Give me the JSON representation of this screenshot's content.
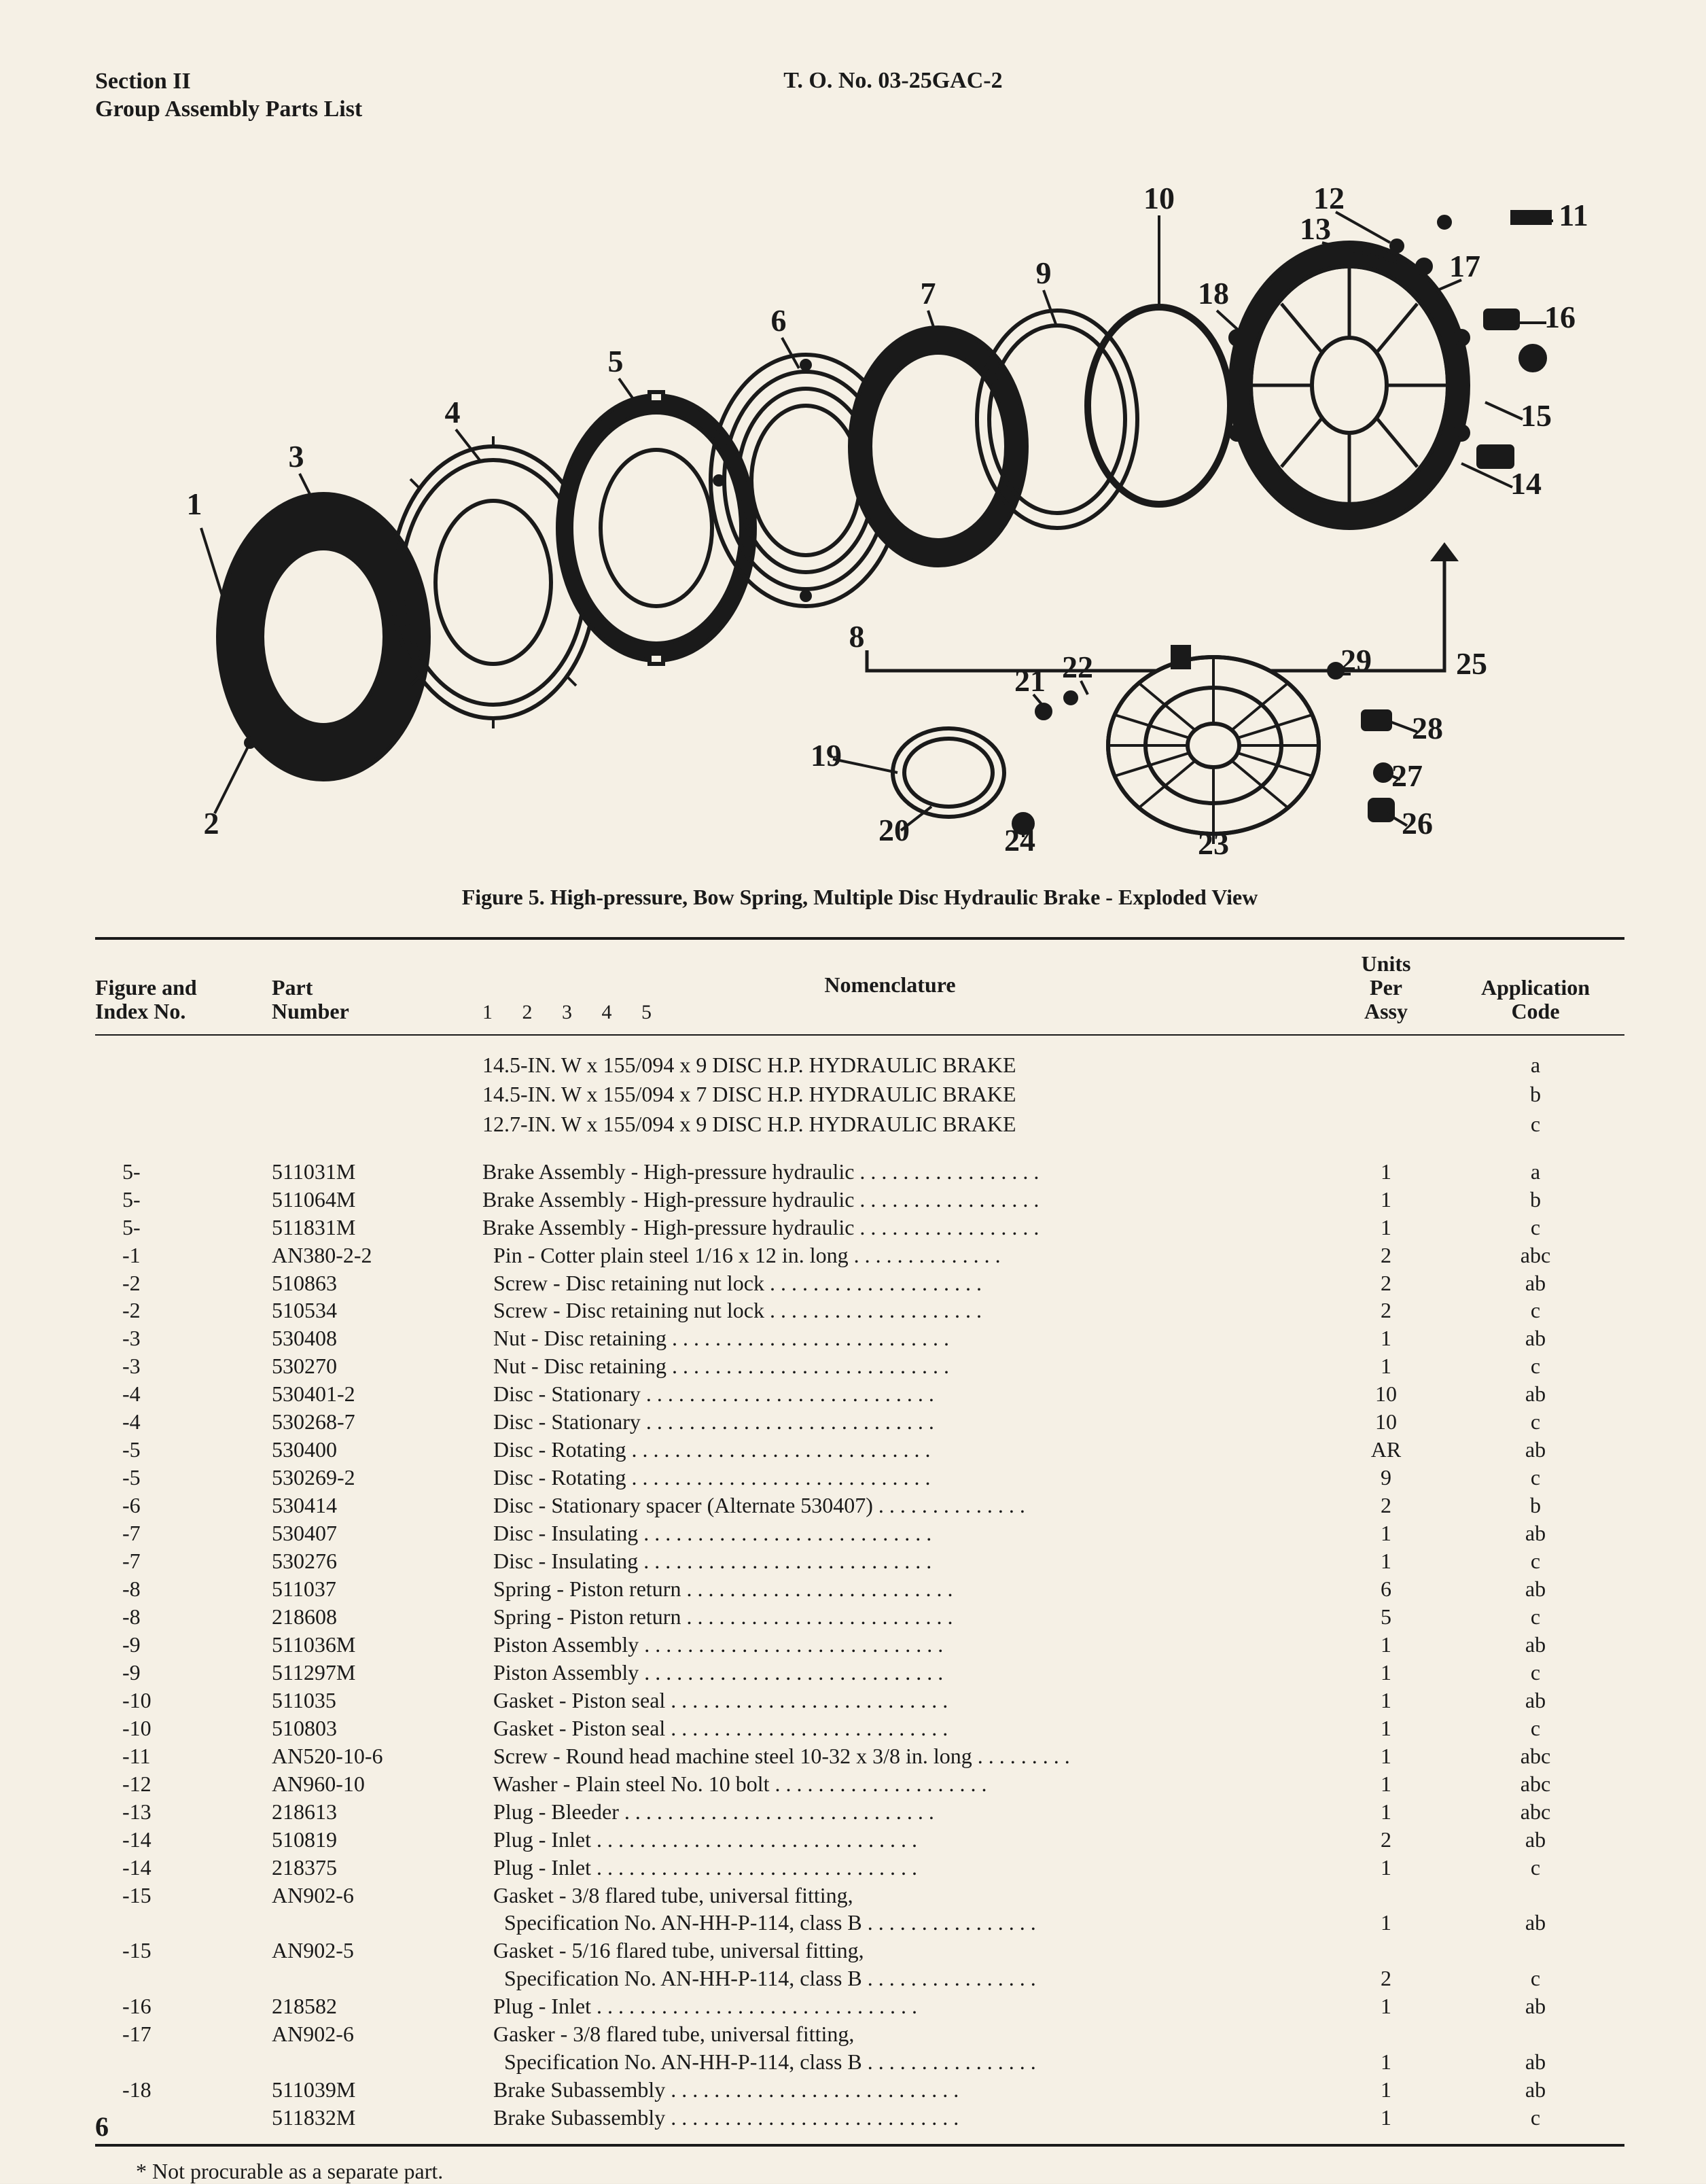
{
  "header": {
    "section": "Section II",
    "subtitle": "Group Assembly Parts List",
    "to_number": "T. O. No. 03-25GAC-2"
  },
  "figure_caption": "Figure 5.  High-pressure, Bow Spring, Multiple Disc Hydraulic Brake - Exploded View",
  "diagram": {
    "type": "exploded-view",
    "callouts": [
      "1",
      "2",
      "3",
      "4",
      "5",
      "6",
      "7",
      "8",
      "9",
      "10",
      "11",
      "12",
      "13",
      "14",
      "15",
      "16",
      "17",
      "18",
      "19",
      "20",
      "21",
      "22",
      "23",
      "24",
      "25",
      "26",
      "27",
      "28",
      "29"
    ],
    "background": "#f5f0e5",
    "stroke": "#1a1a1a",
    "label_fontsize": 40
  },
  "table": {
    "headers": {
      "fig": "Figure and\nIndex No.",
      "part": "Part\nNumber",
      "nomen": "Nomenclature",
      "nomen_sub": "1  2  3  4  5",
      "units": "Units\nPer\nAssy",
      "app": "Application\nCode"
    },
    "specs": [
      {
        "nomen": "14.5-IN. W x 155/094 x 9 DISC  H.P. HYDRAULIC BRAKE",
        "app": "a"
      },
      {
        "nomen": "14.5-IN. W x 155/094 x 7 DISC  H.P. HYDRAULIC BRAKE",
        "app": "b"
      },
      {
        "nomen": "12.7-IN. W x 155/094 x 9 DISC  H.P. HYDRAULIC BRAKE",
        "app": "c"
      }
    ],
    "rows": [
      {
        "fig": "5-",
        "pn": "511031M",
        "nomen": "Brake Assembly - High-pressure hydraulic",
        "units": "1",
        "app": "a"
      },
      {
        "fig": "5-",
        "pn": "511064M",
        "nomen": "Brake Assembly - High-pressure hydraulic",
        "units": "1",
        "app": "b"
      },
      {
        "fig": "5-",
        "pn": "511831M",
        "nomen": "Brake Assembly - High-pressure hydraulic",
        "units": "1",
        "app": "c"
      },
      {
        "fig": "-1",
        "pn": "AN380-2-2",
        "nomen": "  Pin - Cotter plain steel 1/16 x 12 in. long",
        "units": "2",
        "app": "abc"
      },
      {
        "fig": "-2",
        "pn": "510863",
        "nomen": "  Screw - Disc retaining nut lock",
        "units": "2",
        "app": "ab"
      },
      {
        "fig": "-2",
        "pn": "510534",
        "nomen": "  Screw - Disc retaining nut lock",
        "units": "2",
        "app": "c"
      },
      {
        "fig": "-3",
        "pn": "530408",
        "nomen": "  Nut - Disc retaining",
        "units": "1",
        "app": "ab"
      },
      {
        "fig": "-3",
        "pn": "530270",
        "nomen": "  Nut - Disc retaining",
        "units": "1",
        "app": "c"
      },
      {
        "fig": "-4",
        "pn": "530401-2",
        "nomen": "  Disc - Stationary",
        "units": "10",
        "app": "ab"
      },
      {
        "fig": "-4",
        "pn": "530268-7",
        "nomen": "  Disc - Stationary",
        "units": "10",
        "app": "c"
      },
      {
        "fig": "-5",
        "pn": "530400",
        "nomen": "  Disc - Rotating",
        "units": "AR",
        "app": "ab"
      },
      {
        "fig": "-5",
        "pn": "530269-2",
        "nomen": "  Disc - Rotating",
        "units": "9",
        "app": "c"
      },
      {
        "fig": "-6",
        "pn": "530414",
        "nomen": "  Disc - Stationary spacer (Alternate 530407)",
        "units": "2",
        "app": "b"
      },
      {
        "fig": "-7",
        "pn": "530407",
        "nomen": "  Disc - Insulating",
        "units": "1",
        "app": "ab"
      },
      {
        "fig": "-7",
        "pn": "530276",
        "nomen": "  Disc - Insulating",
        "units": "1",
        "app": "c"
      },
      {
        "fig": "-8",
        "pn": "511037",
        "nomen": "  Spring - Piston return",
        "units": "6",
        "app": "ab"
      },
      {
        "fig": "-8",
        "pn": "218608",
        "nomen": "  Spring - Piston return",
        "units": "5",
        "app": "c"
      },
      {
        "fig": "-9",
        "pn": "511036M",
        "nomen": "  Piston Assembly",
        "units": "1",
        "app": "ab"
      },
      {
        "fig": "-9",
        "pn": "511297M",
        "nomen": "  Piston Assembly",
        "units": "1",
        "app": "c"
      },
      {
        "fig": "-10",
        "pn": "511035",
        "nomen": "  Gasket - Piston seal",
        "units": "1",
        "app": "ab"
      },
      {
        "fig": "-10",
        "pn": "510803",
        "nomen": "  Gasket - Piston seal",
        "units": "1",
        "app": "c"
      },
      {
        "fig": "-11",
        "pn": "AN520-10-6",
        "nomen": "  Screw - Round head machine steel 10-32 x 3/8 in. long",
        "units": "1",
        "app": "abc"
      },
      {
        "fig": "-12",
        "pn": "AN960-10",
        "nomen": "  Washer - Plain steel No. 10 bolt",
        "units": "1",
        "app": "abc"
      },
      {
        "fig": "-13",
        "pn": "218613",
        "nomen": "  Plug - Bleeder",
        "units": "1",
        "app": "abc"
      },
      {
        "fig": "-14",
        "pn": "510819",
        "nomen": "  Plug - Inlet",
        "units": "2",
        "app": "ab"
      },
      {
        "fig": "-14",
        "pn": "218375",
        "nomen": "  Plug - Inlet",
        "units": "1",
        "app": "c"
      },
      {
        "fig": "-15",
        "pn": "AN902-6",
        "nomen": "  Gasket - 3/8 flared tube, universal fitting,",
        "nomen2": "    Specification No. AN-HH-P-114, class B",
        "units": "1",
        "app": "ab"
      },
      {
        "fig": "-15",
        "pn": "AN902-5",
        "nomen": "  Gasket - 5/16 flared tube, universal fitting,",
        "nomen2": "    Specification No. AN-HH-P-114, class B",
        "units": "2",
        "app": "c"
      },
      {
        "fig": "-16",
        "pn": "218582",
        "nomen": "  Plug - Inlet",
        "units": "1",
        "app": "ab"
      },
      {
        "fig": "-17",
        "pn": "AN902-6",
        "nomen": "  Gasker - 3/8 flared tube, universal fitting,",
        "nomen2": "    Specification No. AN-HH-P-114, class B",
        "units": "1",
        "app": "ab"
      },
      {
        "fig": "-18",
        "pn": "511039M",
        "nomen": "  Brake Subassembly",
        "units": "1",
        "app": "ab"
      },
      {
        "fig": "",
        "pn": "511832M",
        "nomen": "  Brake Subassembly",
        "units": "1",
        "app": "c"
      }
    ]
  },
  "footnote": "* Not procurable as a separate part.",
  "page_number": "6",
  "colors": {
    "bg": "#f5f0e5",
    "ink": "#1a1a1a"
  }
}
